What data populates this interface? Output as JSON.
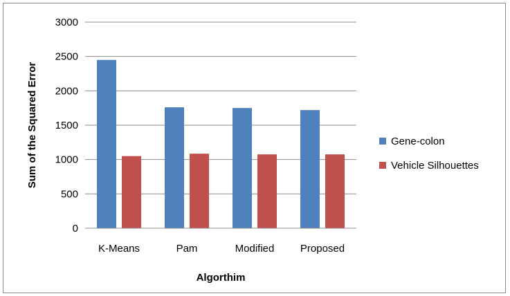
{
  "chart_data": {
    "type": "bar",
    "title": "",
    "xlabel": "Algorthim",
    "ylabel": "Sum of the Squared Error",
    "categories": [
      "K-Means",
      "Pam",
      "Modified",
      "Proposed"
    ],
    "series": [
      {
        "name": "Gene-colon",
        "color": "#4f81bd",
        "values": [
          2450,
          1760,
          1750,
          1720
        ]
      },
      {
        "name": "Vehicle Silhouettes",
        "color": "#c0504d",
        "values": [
          1050,
          1085,
          1075,
          1075
        ]
      }
    ],
    "ylim": [
      0,
      3000
    ],
    "yticks": [
      0,
      500,
      1000,
      1500,
      2000,
      2500,
      3000
    ],
    "grid": true,
    "legend": "right"
  }
}
